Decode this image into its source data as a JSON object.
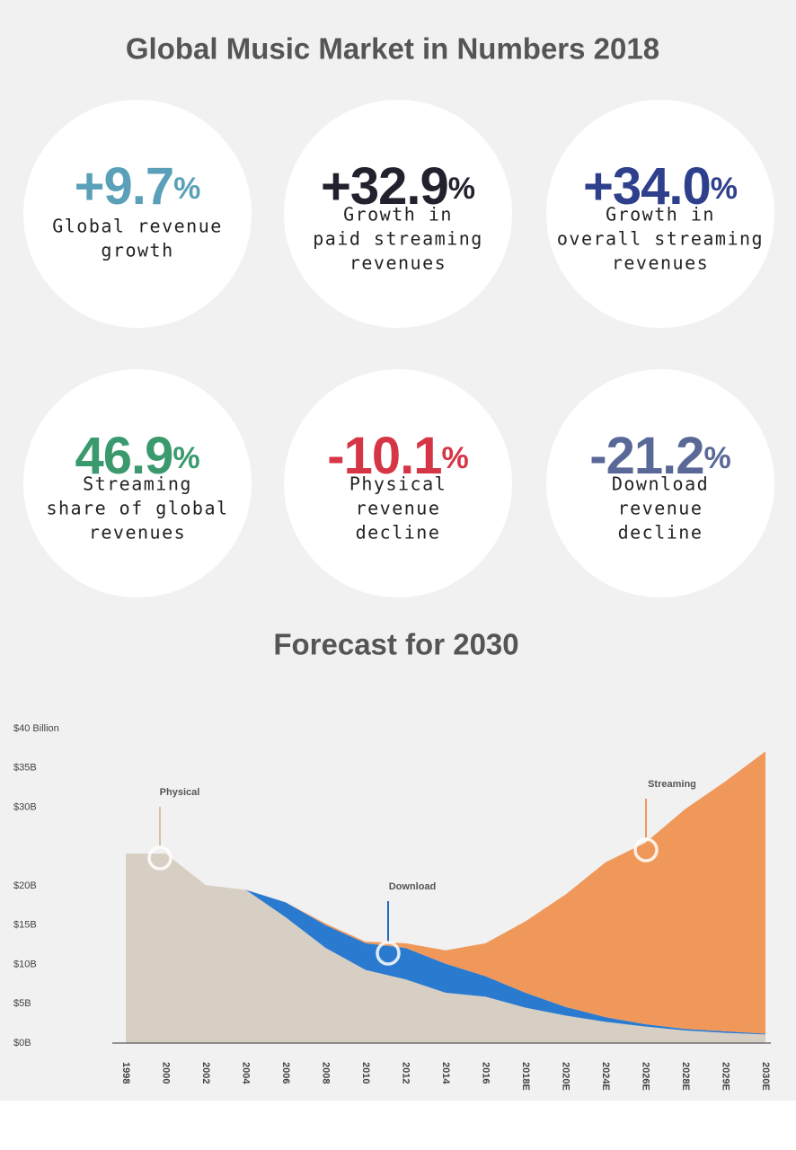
{
  "title": "Global Music Market in Numbers 2018",
  "stats": [
    {
      "number": "+9.7",
      "unit": "%",
      "color": "#5aa0b8",
      "label": [
        "Global revenue",
        "growth"
      ]
    },
    {
      "number": "+32.9",
      "unit": "%",
      "color": "#22222e",
      "label": [
        "Growth in",
        "paid streaming",
        "revenues"
      ]
    },
    {
      "number": "+34.0",
      "unit": "%",
      "color": "#2e3f8c",
      "label": [
        "Growth in",
        "overall streaming",
        "revenues"
      ]
    },
    {
      "number": "46.9",
      "unit": "%",
      "color": "#3a9a6e",
      "label": [
        "Streaming",
        "share of global",
        "revenues"
      ]
    },
    {
      "number": "-10.1",
      "unit": "%",
      "color": "#d63545",
      "label": [
        "Physical",
        "revenue",
        "decline"
      ]
    },
    {
      "number": "-21.2",
      "unit": "%",
      "color": "#5a6898",
      "label": [
        "Download",
        "revenue",
        "decline"
      ]
    }
  ],
  "chart_data": {
    "type": "stacked_area",
    "title": "Forecast for 2030",
    "categories": [
      "1998",
      "2000",
      "2002",
      "2004",
      "2006",
      "2008",
      "2010",
      "2012",
      "2014",
      "2016",
      "2018E",
      "2020E",
      "2024E",
      "2026E",
      "2028E",
      "2029E",
      "2030E"
    ],
    "series": [
      {
        "name": "Physical",
        "color": "#d8cfc4",
        "values": [
          24.1,
          24.1,
          20.1,
          19.5,
          16.0,
          12.1,
          9.3,
          8.1,
          6.4,
          5.9,
          4.5,
          3.5,
          2.7,
          2.1,
          1.6,
          1.3,
          1.1
        ]
      },
      {
        "name": "Download",
        "color": "#2a7bd0",
        "values": [
          0,
          0,
          0,
          0,
          1.9,
          2.9,
          3.4,
          4.0,
          3.7,
          2.6,
          1.9,
          1.1,
          0.6,
          0.3,
          0.2,
          0.2,
          0.1
        ]
      },
      {
        "name": "Streaming",
        "color": "#f0985a",
        "values": [
          0,
          0,
          0,
          0,
          0,
          0.2,
          0.2,
          0.6,
          1.7,
          4.2,
          9.1,
          14.3,
          19.7,
          23.1,
          28.0,
          31.8,
          35.9
        ]
      }
    ],
    "ylim": [
      0,
      40
    ],
    "yticks": [
      {
        "value": 0,
        "label": "$0B"
      },
      {
        "value": 5,
        "label": "$5B"
      },
      {
        "value": 10,
        "label": "$10B"
      },
      {
        "value": 15,
        "label": "$15B"
      },
      {
        "value": 20,
        "label": "$20B"
      },
      {
        "value": 30,
        "label": "$30B"
      },
      {
        "value": 35,
        "label": "$35B"
      },
      {
        "value": 40,
        "label": "$40 Billion"
      }
    ]
  }
}
